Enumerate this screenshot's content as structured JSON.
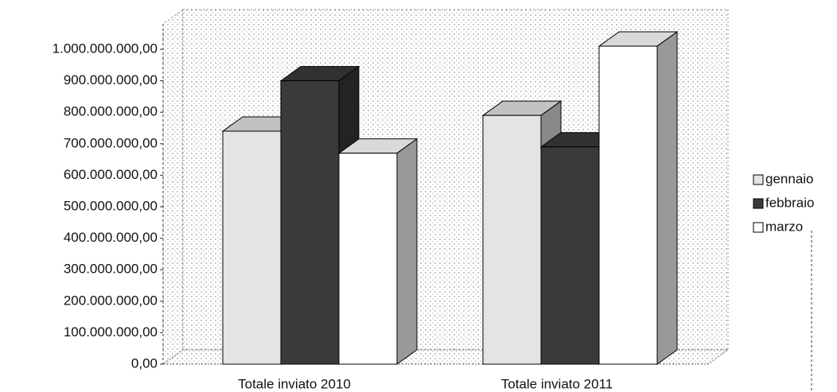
{
  "chart_data": {
    "type": "bar",
    "categories": [
      "Totale inviato 2010",
      "Totale inviato 2011"
    ],
    "series": [
      {
        "name": "gennaio",
        "color": "#e4e4e4",
        "values": [
          740000000,
          790000000
        ]
      },
      {
        "name": "febbraio",
        "color": "#3a3a3a",
        "values": [
          900000000,
          690000000
        ]
      },
      {
        "name": "marzo",
        "color": "#ffffff",
        "values": [
          670000000,
          1010000000
        ]
      }
    ],
    "ylim": [
      0,
      1000000000
    ],
    "yticks": [
      {
        "value": 0,
        "label": "0,00"
      },
      {
        "value": 100000000,
        "label": "100.000.000,00"
      },
      {
        "value": 200000000,
        "label": "200.000.000,00"
      },
      {
        "value": 300000000,
        "label": "300.000.000,00"
      },
      {
        "value": 400000000,
        "label": "400.000.000,00"
      },
      {
        "value": 500000000,
        "label": "500.000.000,00"
      },
      {
        "value": 600000000,
        "label": "600.000.000,00"
      },
      {
        "value": 700000000,
        "label": "700.000.000,00"
      },
      {
        "value": 800000000,
        "label": "800.000.000,00"
      },
      {
        "value": 900000000,
        "label": "900.000.000,00"
      },
      {
        "value": 1000000000,
        "label": "1.000.000.000,00"
      }
    ],
    "legend": "right"
  }
}
